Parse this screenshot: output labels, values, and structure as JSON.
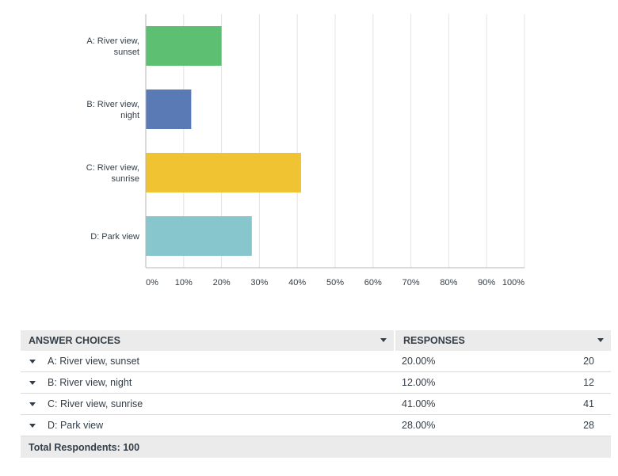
{
  "chart_data": {
    "type": "bar",
    "orientation": "horizontal",
    "categories": [
      "A: River view, sunset",
      "B: River view, night",
      "C: River view, sunrise",
      "D: Park view"
    ],
    "category_label_lines": [
      [
        "A: River view,",
        "sunset"
      ],
      [
        "B: River view,",
        "night"
      ],
      [
        "C: River view,",
        "sunrise"
      ],
      [
        "D: Park view"
      ]
    ],
    "values": [
      20,
      12,
      41,
      28
    ],
    "colors": [
      "#5cbf72",
      "#5a7ab6",
      "#f0c333",
      "#87c6cc"
    ],
    "xlim": [
      0,
      100
    ],
    "xticks": [
      0,
      10,
      20,
      30,
      40,
      50,
      60,
      70,
      80,
      90,
      100
    ],
    "xtick_labels": [
      "0%",
      "10%",
      "20%",
      "30%",
      "40%",
      "50%",
      "60%",
      "70%",
      "80%",
      "90%",
      "100%"
    ],
    "grid": true,
    "title": "",
    "xlabel": "",
    "ylabel": ""
  },
  "table": {
    "header_choices": "ANSWER CHOICES",
    "header_responses": "RESPONSES",
    "rows": [
      {
        "choice": "A: River view, sunset",
        "percent": "20.00%",
        "count": "20"
      },
      {
        "choice": "B: River view, night",
        "percent": "12.00%",
        "count": "12"
      },
      {
        "choice": "C: River view, sunrise",
        "percent": "41.00%",
        "count": "41"
      },
      {
        "choice": "D: Park view",
        "percent": "28.00%",
        "count": "28"
      }
    ],
    "footer": "Total Respondents: 100"
  }
}
